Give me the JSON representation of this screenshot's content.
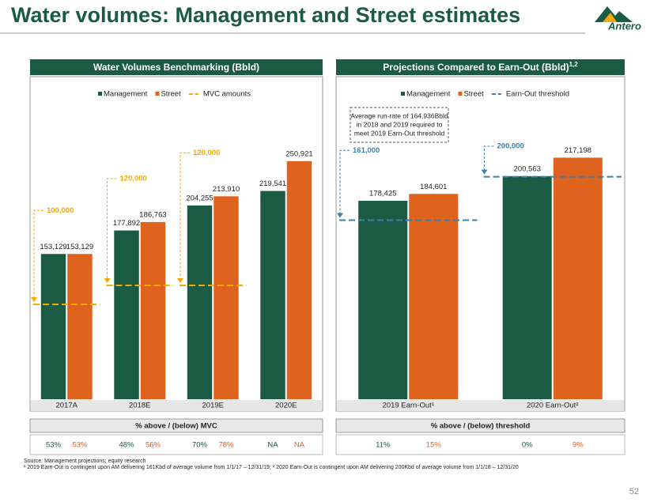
{
  "title": "Water volumes: Management and Street estimates",
  "logo": "Antero",
  "chart_data": [
    {
      "type": "bar",
      "title": "Water Volumes Benchmarking (Bbld)",
      "categories": [
        "2017A",
        "2018E",
        "2019E",
        "2020E"
      ],
      "series": [
        {
          "name": "Management",
          "color": "#1b5b44",
          "values": [
            153129,
            177892,
            204255,
            219541
          ],
          "value_labels": [
            "153,129",
            "177,892",
            "204,255",
            "219,541"
          ]
        },
        {
          "name": "Street",
          "color": "#e0621f",
          "values": [
            153129,
            186763,
            213910,
            250921
          ],
          "value_labels": [
            "153,129",
            "186,763",
            "213,910",
            "250,921"
          ]
        }
      ],
      "threshold": {
        "name": "MVC amounts",
        "color": "#f5a800",
        "values": [
          100000,
          120000,
          120000,
          null
        ],
        "value_labels": [
          "100,000",
          "120,000",
          "120,000",
          null
        ]
      },
      "ylim": [
        0,
        340000
      ],
      "table": {
        "header": "% above / (below) MVC",
        "values": [
          "53%",
          "53%",
          "48%",
          "56%",
          "70%",
          "78%",
          "NA",
          "NA"
        ]
      }
    },
    {
      "type": "bar",
      "title": "Projections Compared to Earn-Out (Bbld)",
      "title_superscript": "1,2",
      "categories": [
        "2019 Earn-Out¹",
        "2020 Earn-Out²"
      ],
      "series": [
        {
          "name": "Management",
          "color": "#1b5b44",
          "values": [
            178425,
            200563
          ],
          "value_labels": [
            "178,425",
            "200,563"
          ]
        },
        {
          "name": "Street",
          "color": "#e0621f",
          "values": [
            184601,
            217198
          ],
          "value_labels": [
            "184,601",
            "217,198"
          ]
        }
      ],
      "threshold": {
        "name": "Earn-Out threshold",
        "color": "#3b80a6",
        "values": [
          161000,
          200000
        ],
        "value_labels": [
          "161,000",
          "200,000"
        ]
      },
      "ylim": [
        0,
        290000
      ],
      "annotation": [
        "Average run-rate of 164,936Bbld",
        "in 2018 and 2019 required to",
        "meet 2019 Earn-Out threshold"
      ],
      "table": {
        "header": "% above / (below) threshold",
        "values": [
          "11%",
          "15%",
          "0%",
          "9%"
        ]
      }
    }
  ],
  "footnotes": [
    "Source: Management projections; equity research",
    "¹ 2019 Earn-Out is contingent upon AM delivering 161Kbd of average volume from 1/1/17 – 12/31/19; ² 2020 Earn-Out is contingent upon AM delivering 200Kbd of average volume from 1/1/18 – 12/31/20"
  ],
  "page_number": "52"
}
